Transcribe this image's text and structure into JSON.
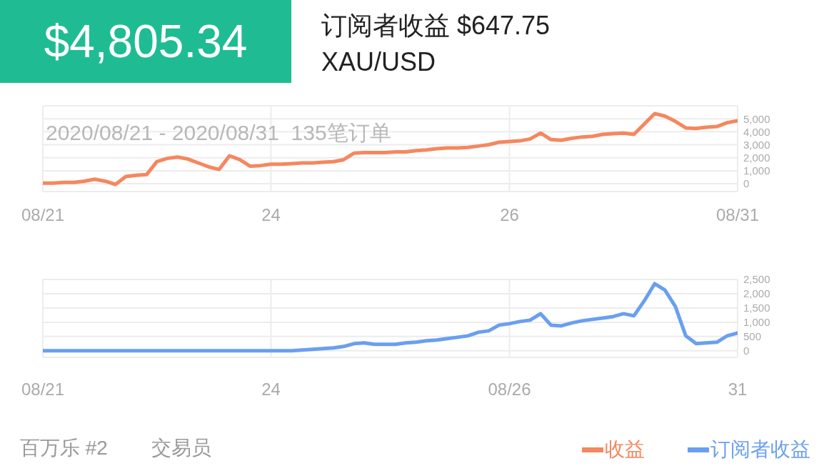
{
  "chart_data": [
    {
      "type": "line",
      "title": "$4,805.34",
      "subtitle": "订阅者收益 $647.75",
      "annotations": [
        "XAU/USD",
        "2020/08/21 - 2020/08/31  135笔订单"
      ],
      "categories": [
        "08/21",
        null,
        null,
        null,
        null,
        null,
        null,
        null,
        null,
        null,
        null,
        null,
        null,
        null,
        null,
        null,
        null,
        null,
        null,
        null,
        null,
        null,
        "24",
        null,
        null,
        null,
        null,
        null,
        null,
        null,
        null,
        null,
        null,
        null,
        null,
        null,
        null,
        null,
        null,
        null,
        null,
        null,
        null,
        null,
        null,
        "26",
        null,
        null,
        null,
        null,
        null,
        null,
        null,
        null,
        null,
        null,
        null,
        null,
        null,
        null,
        null,
        null,
        null,
        null,
        null,
        null,
        null,
        "08/31"
      ],
      "series": [
        {
          "name": "收益",
          "color": "#f5875f",
          "values": [
            50,
            50,
            100,
            100,
            200,
            350,
            200,
            -50,
            550,
            650,
            700,
            1700,
            1950,
            2050,
            1900,
            1600,
            1300,
            1100,
            2150,
            1850,
            1350,
            1400,
            1500,
            1500,
            1550,
            1600,
            1600,
            1650,
            1700,
            1850,
            2350,
            2400,
            2400,
            2400,
            2450,
            2450,
            2550,
            2600,
            2700,
            2750,
            2750,
            2800,
            2900,
            3000,
            3200,
            3250,
            3300,
            3450,
            3900,
            3400,
            3350,
            3500,
            3600,
            3650,
            3800,
            3850,
            3900,
            3800,
            4600,
            5400,
            5200,
            4800,
            4300,
            4250,
            4350,
            4400,
            4700,
            4850
          ]
        }
      ],
      "ylim": [
        -600,
        6000
      ],
      "yticks": [
        {
          "value": 0,
          "label": "0"
        },
        {
          "value": 1000,
          "label": "1,000"
        },
        {
          "value": 2000,
          "label": "2,000"
        },
        {
          "value": 3000,
          "label": "3,000"
        },
        {
          "value": 4000,
          "label": "4,000"
        },
        {
          "value": 5000,
          "label": "5,000"
        },
        {
          "value": 6000,
          "label": null
        }
      ],
      "grid": true,
      "legend": "bottom right",
      "marker": "none",
      "line_style": "solid"
    },
    {
      "type": "line",
      "annotations": [
        "百万乐 #2",
        "交易员"
      ],
      "categories": [
        "08/21",
        null,
        null,
        null,
        null,
        null,
        null,
        null,
        null,
        null,
        null,
        null,
        null,
        null,
        null,
        null,
        null,
        null,
        null,
        null,
        null,
        null,
        "24",
        null,
        null,
        null,
        null,
        null,
        null,
        null,
        null,
        null,
        null,
        null,
        null,
        null,
        null,
        null,
        null,
        null,
        null,
        null,
        null,
        null,
        null,
        "08/26",
        null,
        null,
        null,
        null,
        null,
        null,
        null,
        null,
        null,
        null,
        null,
        null,
        null,
        null,
        null,
        null,
        null,
        null,
        null,
        null,
        null,
        "31"
      ],
      "series": [
        {
          "name": "订阅者收益",
          "color": "#6a9ff0",
          "values": [
            0,
            0,
            0,
            0,
            0,
            0,
            0,
            0,
            0,
            0,
            0,
            0,
            0,
            0,
            0,
            0,
            0,
            0,
            0,
            0,
            0,
            0,
            0,
            0,
            0,
            25,
            50,
            75,
            100,
            150,
            250,
            275,
            225,
            225,
            225,
            275,
            300,
            350,
            375,
            425,
            475,
            525,
            650,
            700,
            900,
            950,
            1025,
            1075,
            1300,
            900,
            875,
            975,
            1050,
            1100,
            1150,
            1200,
            1300,
            1225,
            1750,
            2350,
            2125,
            1550,
            525,
            250,
            275,
            300,
            525,
            625
          ]
        }
      ],
      "ylim": [
        -230,
        2500
      ],
      "yticks": [
        0,
        500,
        {
          "value": 1000,
          "label": "1,000"
        },
        {
          "value": 1500,
          "label": "1,500"
        },
        {
          "value": 2000,
          "label": "2,000"
        },
        {
          "value": 2500,
          "label": "2,500"
        }
      ],
      "grid": true,
      "legend": "bottom right",
      "marker": "none",
      "line_style": "solid"
    }
  ]
}
